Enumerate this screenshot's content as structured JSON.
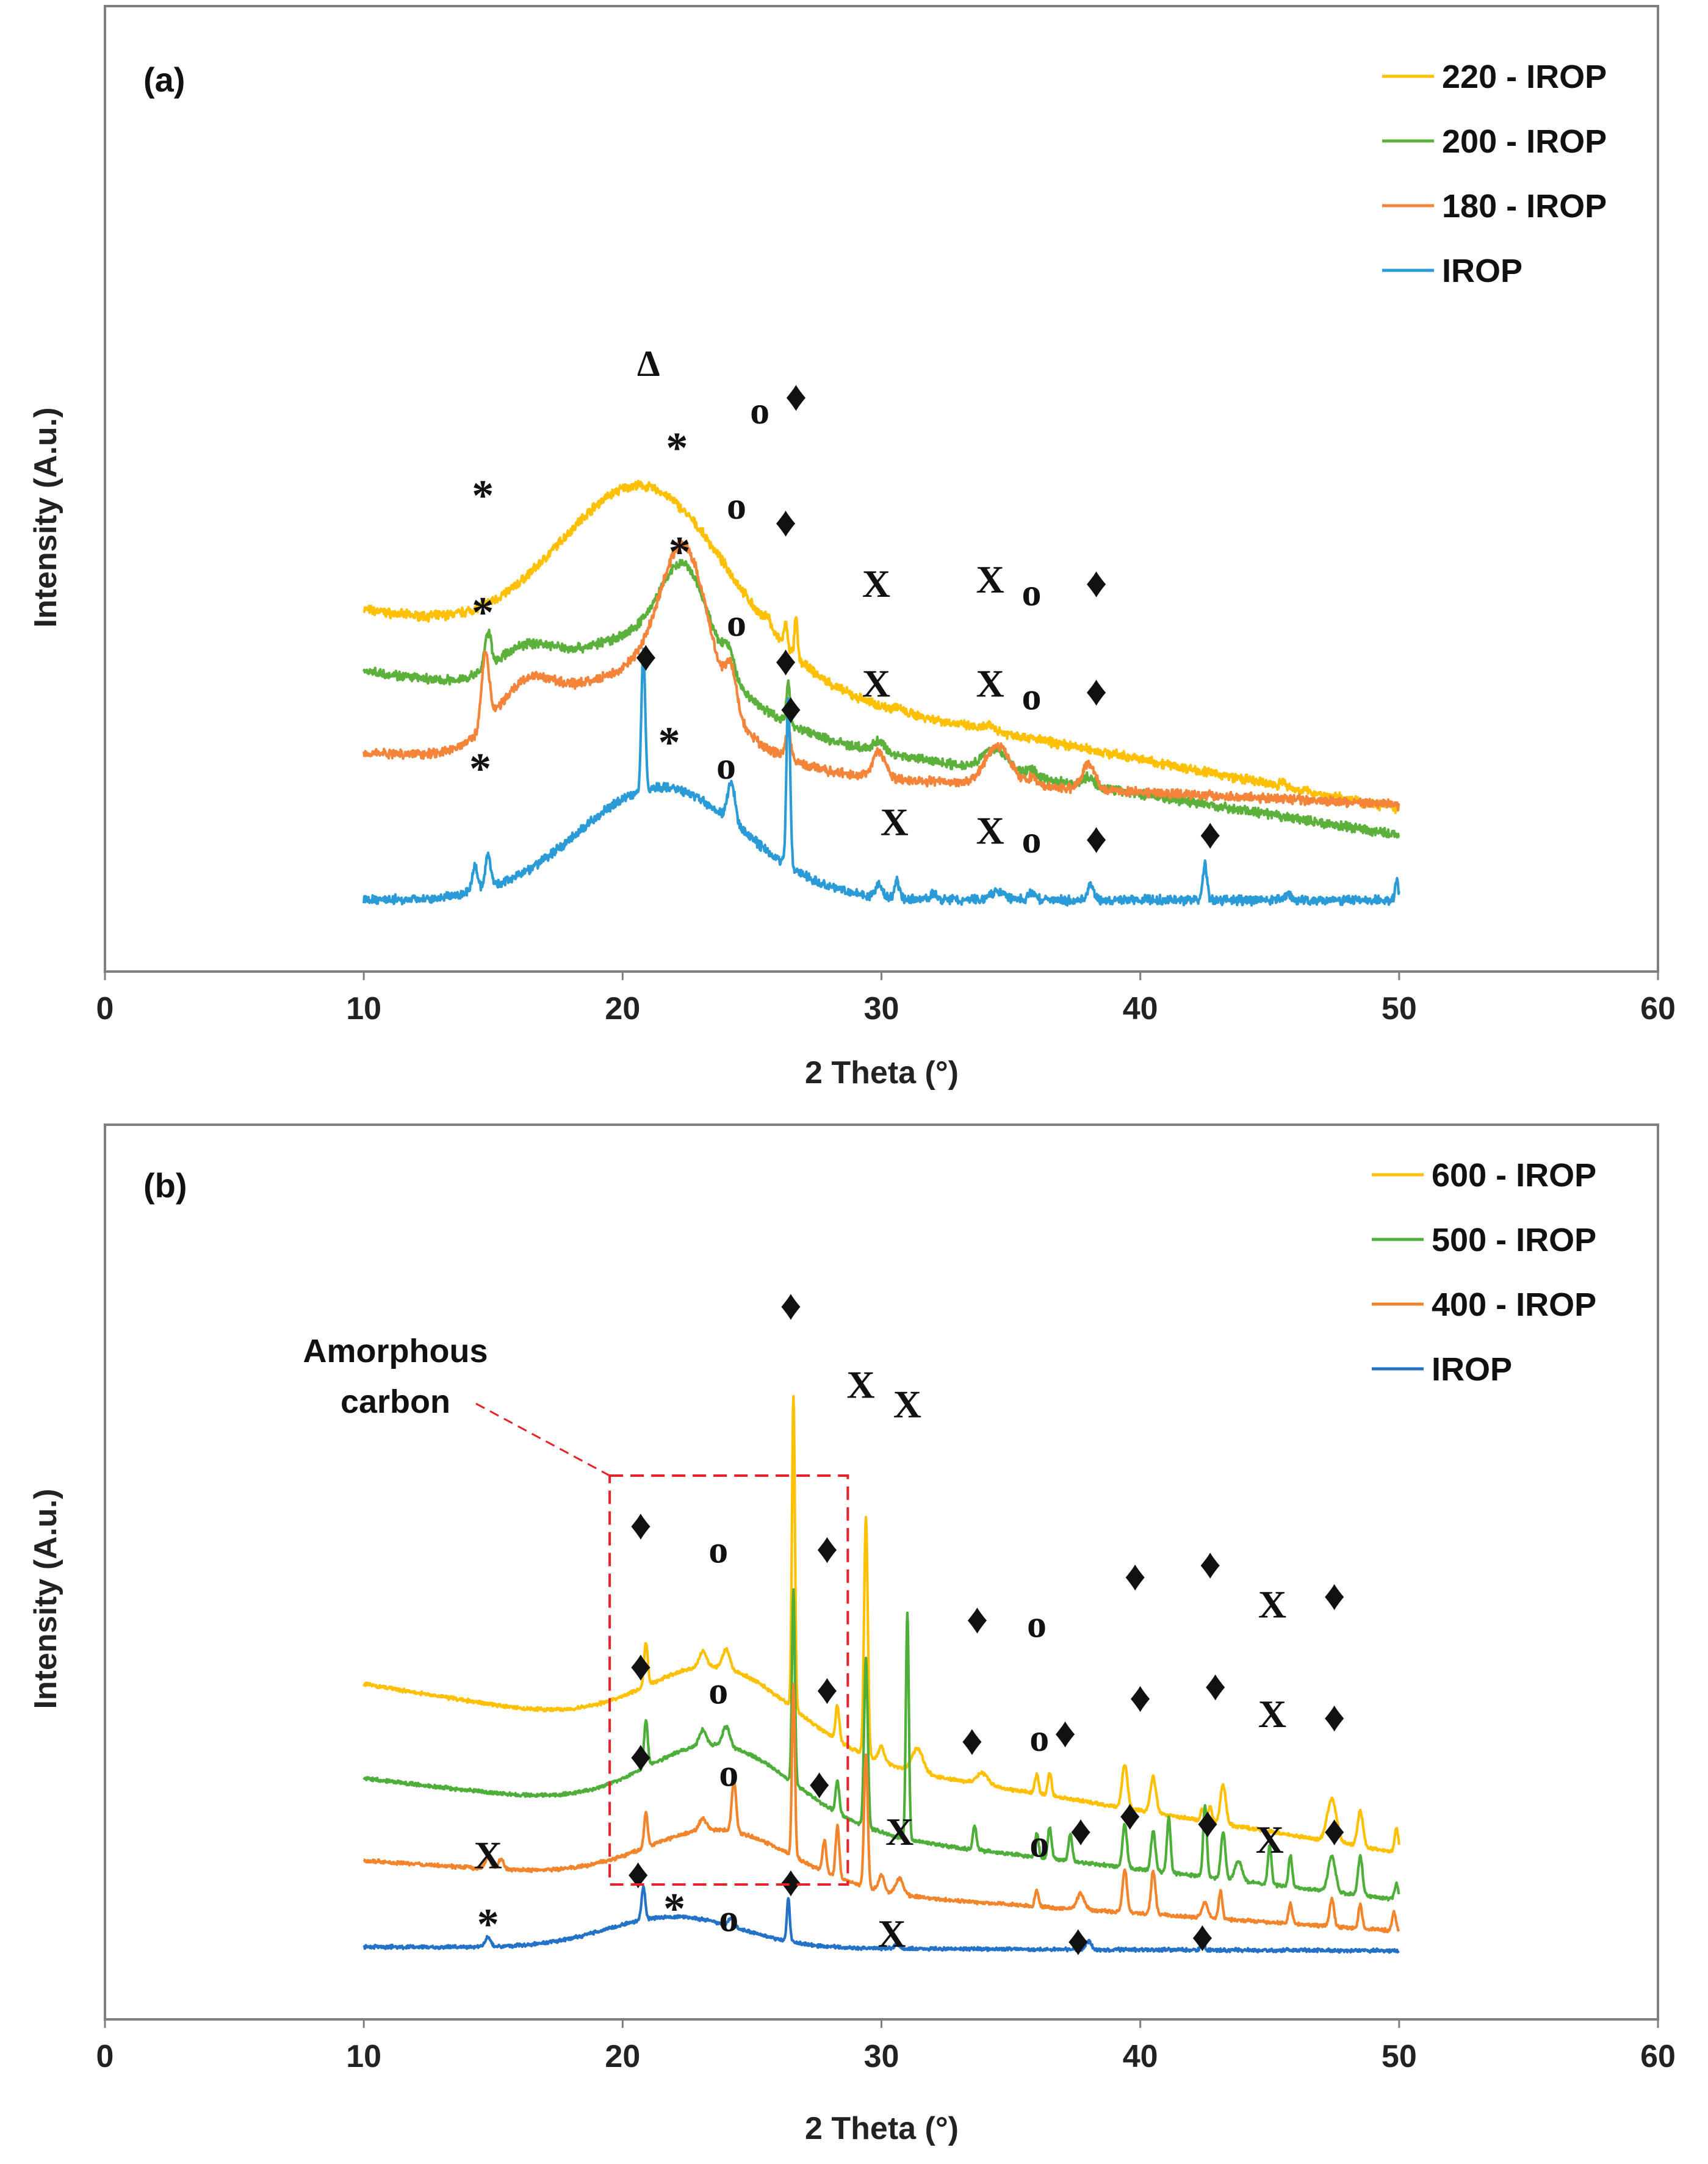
{
  "chart_data": [
    {
      "panel": "(a)",
      "type": "line",
      "xlabel": "2 Theta (°)",
      "ylabel": "Intensity (A.u.)",
      "xlim": [
        0,
        60
      ],
      "xticks": [
        "0",
        "10",
        "20",
        "30",
        "40",
        "50",
        "60"
      ],
      "x_range": [
        10,
        50
      ],
      "legend": [
        {
          "name": "220 - IROP",
          "color": "#FFC000"
        },
        {
          "name": "200 - IROP",
          "color": "#5BB13B"
        },
        {
          "name": "180 - IROP",
          "color": "#F4843A"
        },
        {
          "name": "IROP",
          "color": "#2B9BD8"
        }
      ],
      "series": [
        {
          "name": "220 - IROP",
          "color": "#FFC000",
          "baseline": [
            0.335,
            0.105
          ],
          "hump": {
            "center": 20.9,
            "width": 4.6,
            "height": 0.205
          },
          "peaks": [
            [
              25.6,
              0.012,
              0.15
            ],
            [
              26.3,
              0.025,
              0.1
            ],
            [
              26.7,
              0.045,
              0.08
            ],
            [
              30.6,
              0.005,
              0.2
            ],
            [
              34.2,
              0.005,
              0.3
            ],
            [
              45.5,
              0.006,
              0.15
            ]
          ]
        },
        {
          "name": "200 - IROP",
          "color": "#5BB13B",
          "baseline": [
            0.265,
            0.075
          ],
          "hump": {
            "center": 21.0,
            "width": 4.2,
            "height": 0.09
          },
          "peaks": [
            [
              22.4,
              0.1,
              1.3
            ],
            [
              16.2,
              0.035,
              1.6
            ],
            [
              14.8,
              0.04,
              0.18
            ],
            [
              24.1,
              0.025,
              0.3
            ],
            [
              26.4,
              0.045,
              0.1
            ],
            [
              29.9,
              0.012,
              0.3
            ],
            [
              34.4,
              0.025,
              0.7
            ],
            [
              35.8,
              0.007,
              0.3
            ],
            [
              38.0,
              0.01,
              0.3
            ]
          ]
        },
        {
          "name": "180 - IROP",
          "color": "#F4843A",
          "baseline": [
            0.17,
            0.11
          ],
          "hump": {
            "center": 20.6,
            "width": 4.3,
            "height": 0.11
          },
          "peaks": [
            [
              22.4,
              0.165,
              1.3
            ],
            [
              16.2,
              0.055,
              1.6
            ],
            [
              14.7,
              0.085,
              0.2
            ],
            [
              24.2,
              0.045,
              0.3
            ],
            [
              26.4,
              0.03,
              0.15
            ],
            [
              29.9,
              0.03,
              0.35
            ],
            [
              34.5,
              0.045,
              0.7
            ],
            [
              35.8,
              0.008,
              0.3
            ],
            [
              38.0,
              0.03,
              0.35
            ]
          ]
        },
        {
          "name": "IROP",
          "color": "#2B9BD8",
          "baseline": [
            0.0,
            0.0
          ],
          "hump": {
            "center": 21.5,
            "width": 4.5,
            "height": 0.13
          },
          "peaks": [
            [
              20.8,
              0.165,
              0.1
            ],
            [
              26.4,
              0.195,
              0.1
            ],
            [
              14.3,
              0.03,
              0.15
            ],
            [
              14.8,
              0.04,
              0.15
            ],
            [
              24.2,
              0.045,
              0.2
            ],
            [
              29.9,
              0.015,
              0.15
            ],
            [
              30.6,
              0.02,
              0.12
            ],
            [
              32.0,
              0.008,
              0.15
            ],
            [
              34.5,
              0.01,
              0.4
            ],
            [
              35.8,
              0.008,
              0.2
            ],
            [
              38.1,
              0.02,
              0.15
            ],
            [
              42.5,
              0.04,
              0.12
            ],
            [
              45.7,
              0.008,
              0.15
            ],
            [
              49.9,
              0.025,
              0.08
            ]
          ]
        }
      ],
      "annotations": [
        {
          "text": "Δ",
          "x": 21.0,
          "level": 0.605
        },
        {
          "text": "o",
          "x": 25.3,
          "level": 0.55
        },
        {
          "text": "♦",
          "x": 26.7,
          "level": 0.565
        },
        {
          "text": "*",
          "x": 22.1,
          "level": 0.505
        },
        {
          "text": "*",
          "x": 14.6,
          "level": 0.45
        },
        {
          "text": "o",
          "x": 24.4,
          "level": 0.44
        },
        {
          "text": "♦",
          "x": 26.3,
          "level": 0.42
        },
        {
          "text": "X",
          "x": 29.8,
          "level": 0.35
        },
        {
          "text": "X",
          "x": 34.2,
          "level": 0.355
        },
        {
          "text": "o",
          "x": 35.8,
          "level": 0.34
        },
        {
          "text": "♦",
          "x": 38.3,
          "level": 0.35
        },
        {
          "text": "*",
          "x": 22.2,
          "level": 0.385
        },
        {
          "text": "*",
          "x": 14.6,
          "level": 0.315
        },
        {
          "text": "o",
          "x": 24.4,
          "level": 0.305
        },
        {
          "text": "♦",
          "x": 20.9,
          "level": 0.265
        },
        {
          "text": "♦",
          "x": 26.3,
          "level": 0.26
        },
        {
          "text": "X",
          "x": 29.8,
          "level": 0.235
        },
        {
          "text": "X",
          "x": 34.2,
          "level": 0.235
        },
        {
          "text": "o",
          "x": 35.8,
          "level": 0.22
        },
        {
          "text": "♦",
          "x": 38.3,
          "level": 0.225
        },
        {
          "text": "♦",
          "x": 26.5,
          "level": 0.205
        },
        {
          "text": "*",
          "x": 21.8,
          "level": 0.165
        },
        {
          "text": "o",
          "x": 24.0,
          "level": 0.14
        },
        {
          "text": "*",
          "x": 14.5,
          "level": 0.135
        },
        {
          "text": "X",
          "x": 30.5,
          "level": 0.075
        },
        {
          "text": "X",
          "x": 34.2,
          "level": 0.065
        },
        {
          "text": "o",
          "x": 35.8,
          "level": 0.055
        },
        {
          "text": "♦",
          "x": 38.3,
          "level": 0.055
        },
        {
          "text": "♦",
          "x": 42.7,
          "level": 0.06
        }
      ]
    },
    {
      "panel": "(b)",
      "type": "line",
      "xlabel": "2 Theta (°)",
      "ylabel": "Intensity (A.u.)",
      "xlim": [
        0,
        60
      ],
      "xticks": [
        "0",
        "10",
        "20",
        "30",
        "40",
        "50",
        "60"
      ],
      "x_range": [
        10,
        50
      ],
      "legend": [
        {
          "name": "600 - IROP",
          "color": "#FFC000"
        },
        {
          "name": "500 - IROP",
          "color": "#4EAE3A"
        },
        {
          "name": "400 - IROP",
          "color": "#F2842C"
        },
        {
          "name": "IROP",
          "color": "#2472C8"
        }
      ],
      "series": [
        {
          "name": "600 - IROP",
          "color": "#FFC000",
          "baseline": [
            0.37,
            0.155
          ],
          "hump": {
            "center": 23.8,
            "width": 4.0,
            "height": 0.095
          },
          "peaks": [
            [
              20.9,
              0.055,
              0.1
            ],
            [
              23.1,
              0.02,
              0.2
            ],
            [
              24.0,
              0.025,
              0.2
            ],
            [
              26.6,
              0.4,
              0.08
            ],
            [
              28.3,
              0.045,
              0.1
            ],
            [
              29.4,
              0.305,
              0.1
            ],
            [
              30.0,
              0.02,
              0.15
            ],
            [
              31.4,
              0.03,
              0.3
            ],
            [
              33.9,
              0.015,
              0.3
            ],
            [
              36.0,
              0.025,
              0.1
            ],
            [
              36.5,
              0.03,
              0.1
            ],
            [
              39.4,
              0.055,
              0.15
            ],
            [
              40.5,
              0.045,
              0.15
            ],
            [
              42.4,
              0.015,
              0.1
            ],
            [
              42.7,
              0.02,
              0.1
            ],
            [
              43.2,
              0.05,
              0.15
            ],
            [
              47.4,
              0.055,
              0.25
            ],
            [
              48.5,
              0.045,
              0.15
            ],
            [
              49.9,
              0.03,
              0.1
            ]
          ]
        },
        {
          "name": "500 - IROP",
          "color": "#4EAE3A",
          "baseline": [
            0.25,
            0.095
          ],
          "hump": {
            "center": 23.8,
            "width": 4.0,
            "height": 0.095
          },
          "peaks": [
            [
              20.9,
              0.06,
              0.1
            ],
            [
              23.1,
              0.02,
              0.2
            ],
            [
              24.0,
              0.025,
              0.2
            ],
            [
              26.6,
              0.245,
              0.08
            ],
            [
              28.3,
              0.04,
              0.1
            ],
            [
              29.4,
              0.215,
              0.1
            ],
            [
              31.0,
              0.29,
              0.08
            ],
            [
              33.6,
              0.03,
              0.1
            ],
            [
              36.0,
              0.03,
              0.1
            ],
            [
              36.5,
              0.04,
              0.1
            ],
            [
              37.3,
              0.035,
              0.1
            ],
            [
              39.4,
              0.055,
              0.12
            ],
            [
              40.5,
              0.05,
              0.12
            ],
            [
              41.1,
              0.07,
              0.1
            ],
            [
              42.5,
              0.09,
              0.1
            ],
            [
              43.2,
              0.06,
              0.12
            ],
            [
              43.8,
              0.025,
              0.2
            ],
            [
              45.0,
              0.05,
              0.1
            ],
            [
              45.8,
              0.04,
              0.1
            ],
            [
              47.4,
              0.045,
              0.2
            ],
            [
              48.5,
              0.05,
              0.12
            ],
            [
              49.9,
              0.02,
              0.1
            ]
          ]
        },
        {
          "name": "400 - IROP",
          "color": "#F2842C",
          "baseline": [
            0.145,
            0.055
          ],
          "hump": {
            "center": 23.8,
            "width": 4.0,
            "height": 0.07
          },
          "peaks": [
            [
              14.8,
              0.015,
              0.15
            ],
            [
              15.3,
              0.012,
              0.15
            ],
            [
              20.9,
              0.045,
              0.1
            ],
            [
              23.1,
              0.015,
              0.2
            ],
            [
              24.3,
              0.065,
              0.12
            ],
            [
              26.6,
              0.22,
              0.08
            ],
            [
              27.8,
              0.04,
              0.1
            ],
            [
              28.3,
              0.065,
              0.1
            ],
            [
              29.4,
              0.17,
              0.1
            ],
            [
              30.0,
              0.02,
              0.15
            ],
            [
              30.7,
              0.02,
              0.2
            ],
            [
              36.0,
              0.02,
              0.1
            ],
            [
              37.7,
              0.02,
              0.2
            ],
            [
              39.4,
              0.055,
              0.12
            ],
            [
              40.5,
              0.055,
              0.12
            ],
            [
              42.5,
              0.02,
              0.15
            ],
            [
              43.1,
              0.035,
              0.1
            ],
            [
              45.8,
              0.025,
              0.1
            ],
            [
              47.4,
              0.035,
              0.12
            ],
            [
              48.5,
              0.03,
              0.1
            ],
            [
              49.8,
              0.025,
              0.1
            ]
          ]
        },
        {
          "name": "IROP",
          "color": "#2472C8",
          "baseline": [
            0.035,
            0.03
          ],
          "hump": {
            "center": 22.0,
            "width": 3.6,
            "height": 0.04
          },
          "peaks": [
            [
              14.8,
              0.012,
              0.15
            ],
            [
              20.8,
              0.042,
              0.1
            ],
            [
              24.2,
              0.01,
              0.15
            ],
            [
              26.4,
              0.055,
              0.08
            ],
            [
              30.6,
              0.006,
              0.15
            ],
            [
              38.0,
              0.01,
              0.15
            ],
            [
              42.4,
              0.01,
              0.1
            ]
          ]
        }
      ],
      "annotations": [
        {
          "text": "♦",
          "x": 26.5,
          "level": 0.835
        },
        {
          "text": "X",
          "x": 29.2,
          "level": 0.735
        },
        {
          "text": "X",
          "x": 31.0,
          "level": 0.71
        },
        {
          "text": "♦",
          "x": 20.7,
          "level": 0.555
        },
        {
          "text": "o",
          "x": 23.7,
          "level": 0.525
        },
        {
          "text": "♦",
          "x": 27.9,
          "level": 0.525
        },
        {
          "text": "♦",
          "x": 33.7,
          "level": 0.435
        },
        {
          "text": "o",
          "x": 36.0,
          "level": 0.43
        },
        {
          "text": "♦",
          "x": 39.8,
          "level": 0.49
        },
        {
          "text": "♦",
          "x": 42.7,
          "level": 0.505
        },
        {
          "text": "X",
          "x": 45.1,
          "level": 0.455
        },
        {
          "text": "♦",
          "x": 47.5,
          "level": 0.465
        },
        {
          "text": "♦",
          "x": 20.7,
          "level": 0.375
        },
        {
          "text": "o",
          "x": 23.7,
          "level": 0.345
        },
        {
          "text": "♦",
          "x": 27.9,
          "level": 0.345
        },
        {
          "text": "♦",
          "x": 33.5,
          "level": 0.28
        },
        {
          "text": "o",
          "x": 36.1,
          "level": 0.285
        },
        {
          "text": "♦",
          "x": 37.1,
          "level": 0.29
        },
        {
          "text": "♦",
          "x": 40.0,
          "level": 0.335
        },
        {
          "text": "♦",
          "x": 42.9,
          "level": 0.35
        },
        {
          "text": "X",
          "x": 45.1,
          "level": 0.315
        },
        {
          "text": "♦",
          "x": 47.5,
          "level": 0.31
        },
        {
          "text": "♦",
          "x": 20.7,
          "level": 0.26
        },
        {
          "text": "o",
          "x": 24.1,
          "level": 0.24
        },
        {
          "text": "♦",
          "x": 27.6,
          "level": 0.225
        },
        {
          "text": "X",
          "x": 30.7,
          "level": 0.165
        },
        {
          "text": "o",
          "x": 36.1,
          "level": 0.15
        },
        {
          "text": "♦",
          "x": 37.7,
          "level": 0.165
        },
        {
          "text": "♦",
          "x": 39.6,
          "level": 0.185
        },
        {
          "text": "♦",
          "x": 42.6,
          "level": 0.175
        },
        {
          "text": "X",
          "x": 45.0,
          "level": 0.155
        },
        {
          "text": "♦",
          "x": 47.5,
          "level": 0.165
        },
        {
          "text": "X",
          "x": 14.8,
          "level": 0.135
        },
        {
          "text": "♦",
          "x": 20.6,
          "level": 0.11
        },
        {
          "text": "*",
          "x": 14.8,
          "level": 0.045
        },
        {
          "text": "*",
          "x": 22.0,
          "level": 0.065
        },
        {
          "text": "o",
          "x": 24.1,
          "level": 0.055
        },
        {
          "text": "♦",
          "x": 26.5,
          "level": 0.1
        },
        {
          "text": "X",
          "x": 30.4,
          "level": 0.035
        },
        {
          "text": "♦",
          "x": 37.6,
          "level": 0.025
        },
        {
          "text": "♦",
          "x": 42.4,
          "level": 0.03
        }
      ],
      "callout": {
        "line1": "Amorphous",
        "line2": "carbon",
        "box_x": [
          19.5,
          28.7
        ]
      }
    }
  ]
}
